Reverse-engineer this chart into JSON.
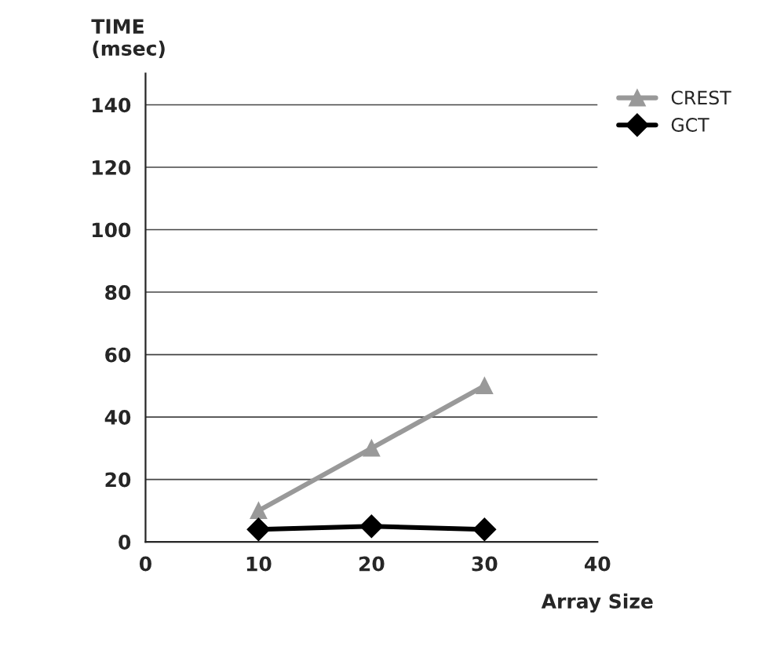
{
  "chart_data": {
    "type": "line",
    "xlabel": "Array Size",
    "ylabel": "TIME\n(msec)",
    "x": [
      10,
      20,
      30
    ],
    "series": [
      {
        "name": "CREST",
        "color": "#999999",
        "marker": "triangle",
        "values": [
          10,
          30,
          50
        ]
      },
      {
        "name": "GCT",
        "color": "#000000",
        "marker": "diamond",
        "values": [
          4,
          5,
          4
        ]
      }
    ],
    "xlim": [
      0,
      40
    ],
    "xticks": [
      0,
      10,
      20,
      30,
      40
    ],
    "ylim": [
      0,
      150
    ],
    "yticks": [
      0,
      20,
      40,
      60,
      80,
      100,
      120,
      140
    ],
    "grid": "y",
    "legend": "top right",
    "line_style": "solid"
  }
}
